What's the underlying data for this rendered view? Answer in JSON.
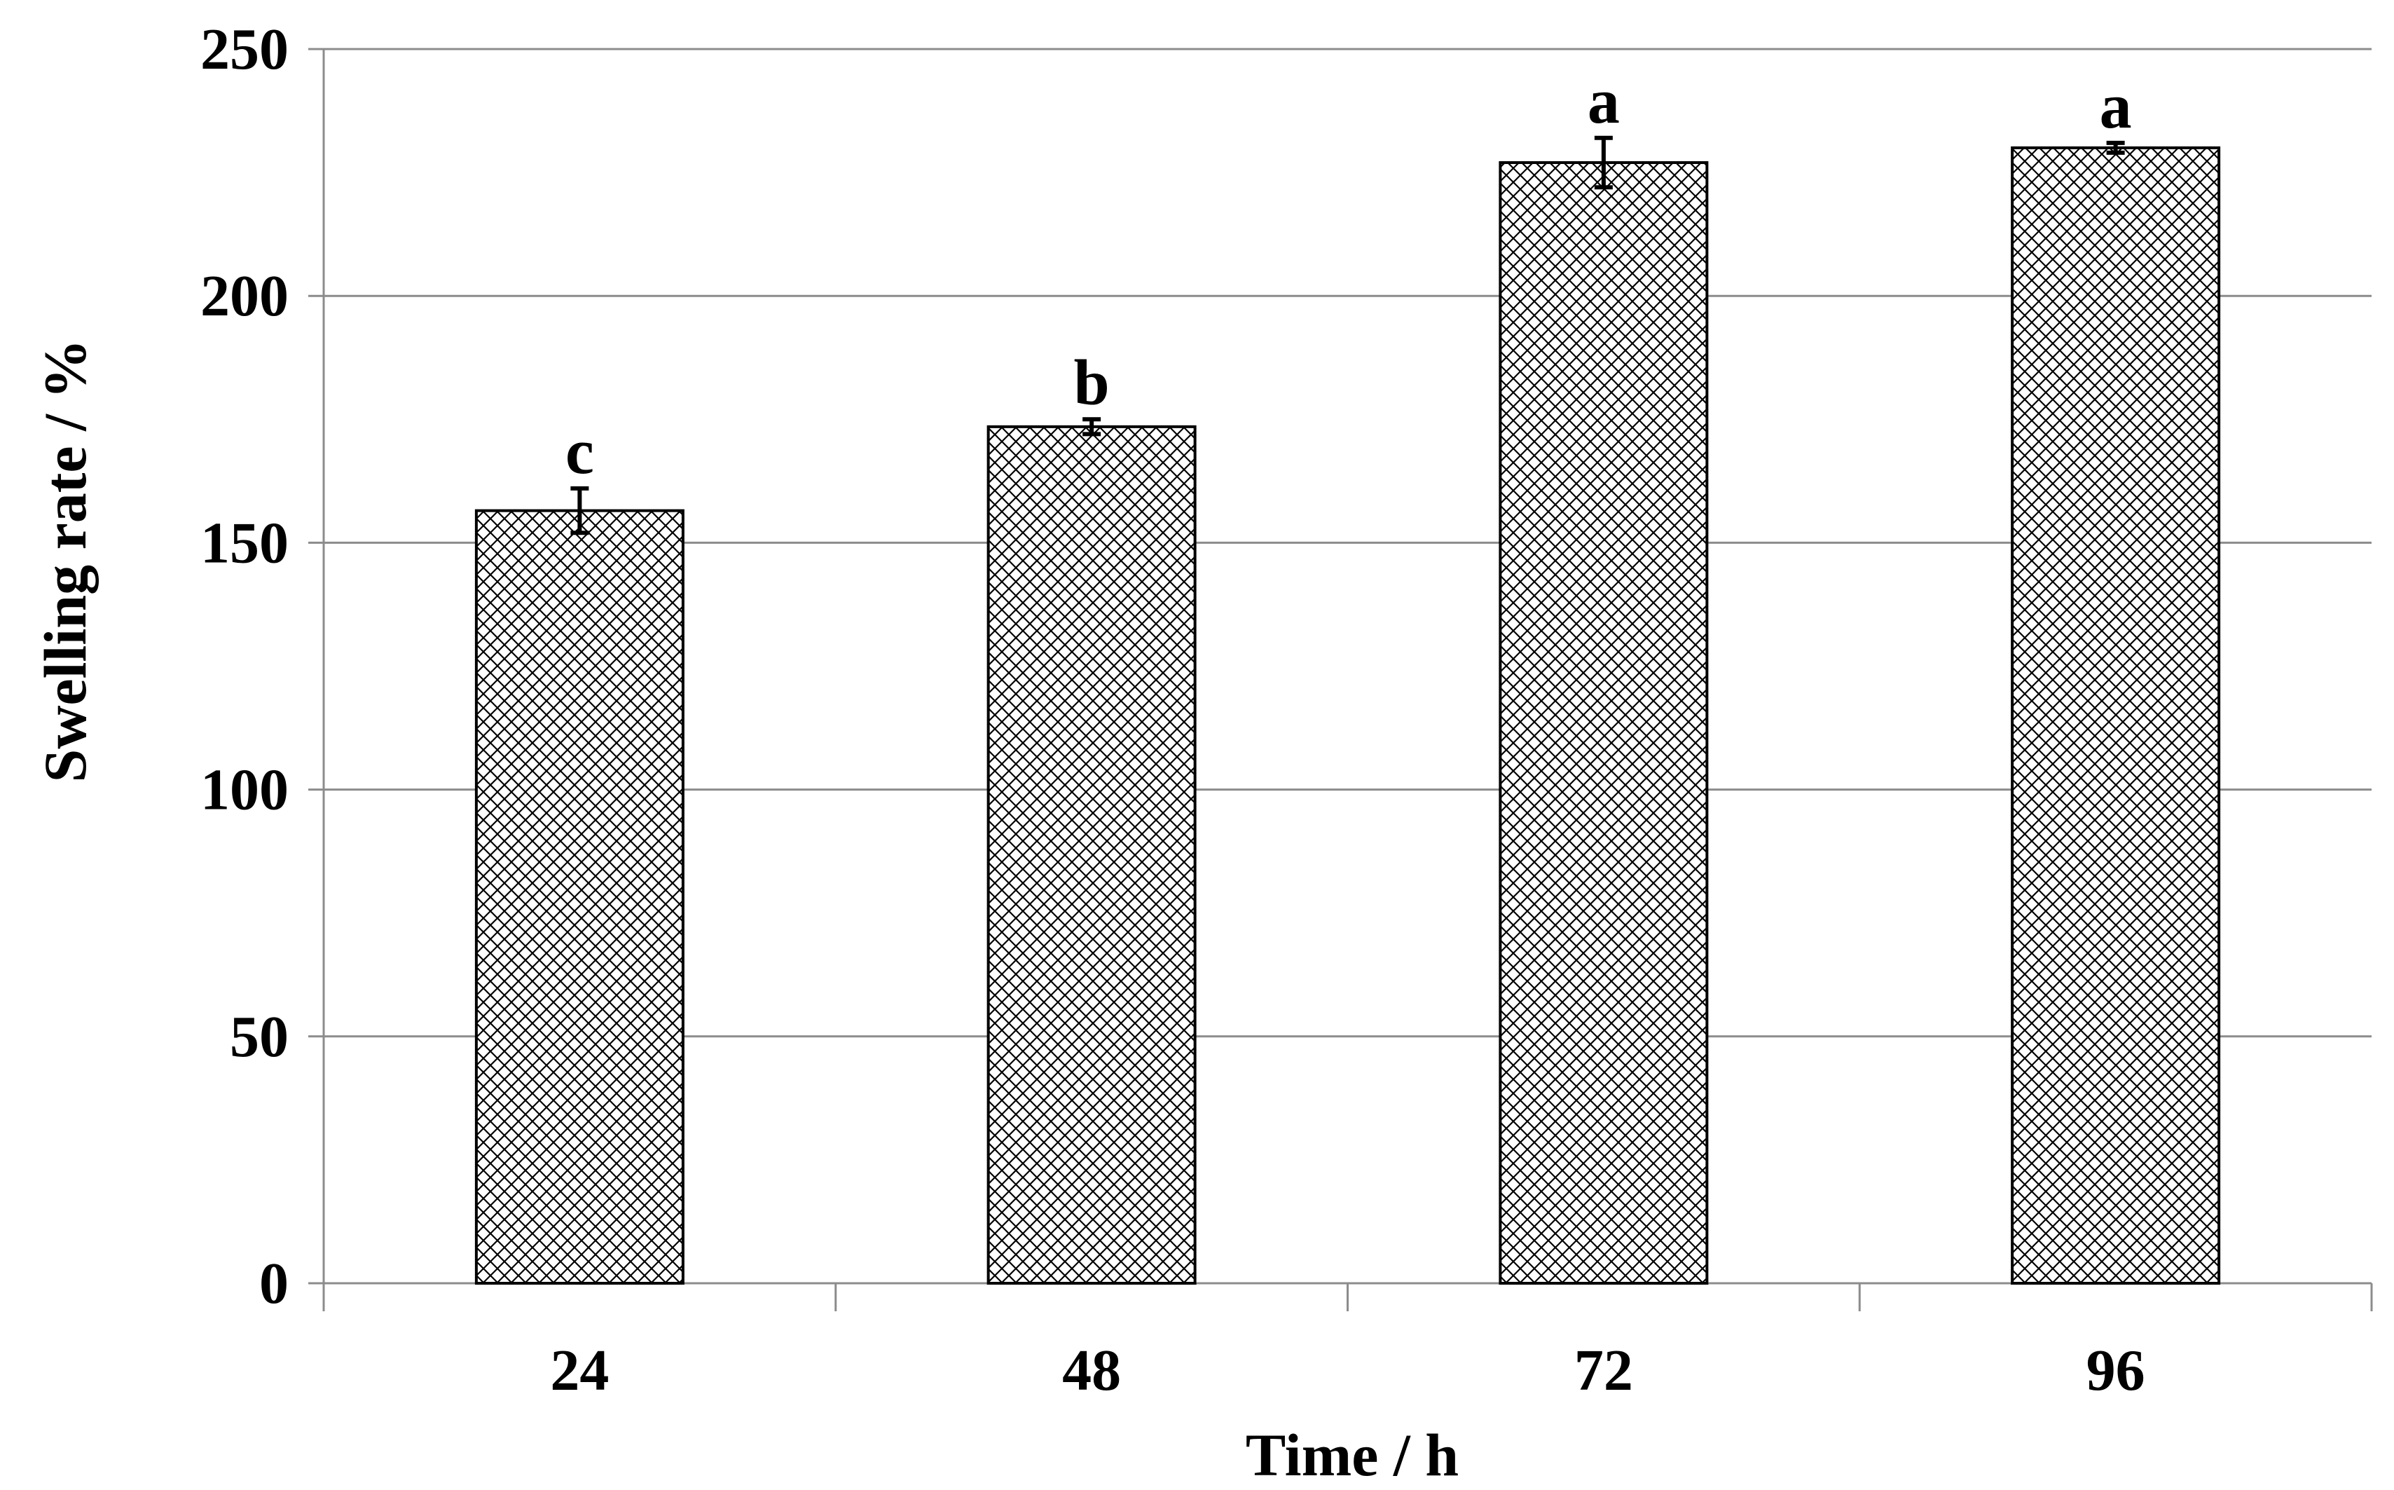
{
  "chart_data": {
    "type": "bar",
    "categories": [
      "24",
      "48",
      "72",
      "96"
    ],
    "values": [
      156.5,
      173.5,
      227,
      230
    ],
    "errors": [
      4.5,
      1.5,
      5,
      1
    ],
    "significance_labels": [
      "c",
      "b",
      "a",
      "a"
    ],
    "xlabel": "Time / h",
    "ylabel": "Swelling rate / %",
    "ylim": [
      0,
      250
    ],
    "yticks": [
      "0",
      "50",
      "100",
      "150",
      "200",
      "250"
    ],
    "grid": true,
    "legend": "none",
    "bar_fill": "crosshatch",
    "colors": {
      "bar_stroke": "#000000",
      "grid": "#8c8c8c",
      "axis": "#8c8c8c"
    }
  }
}
